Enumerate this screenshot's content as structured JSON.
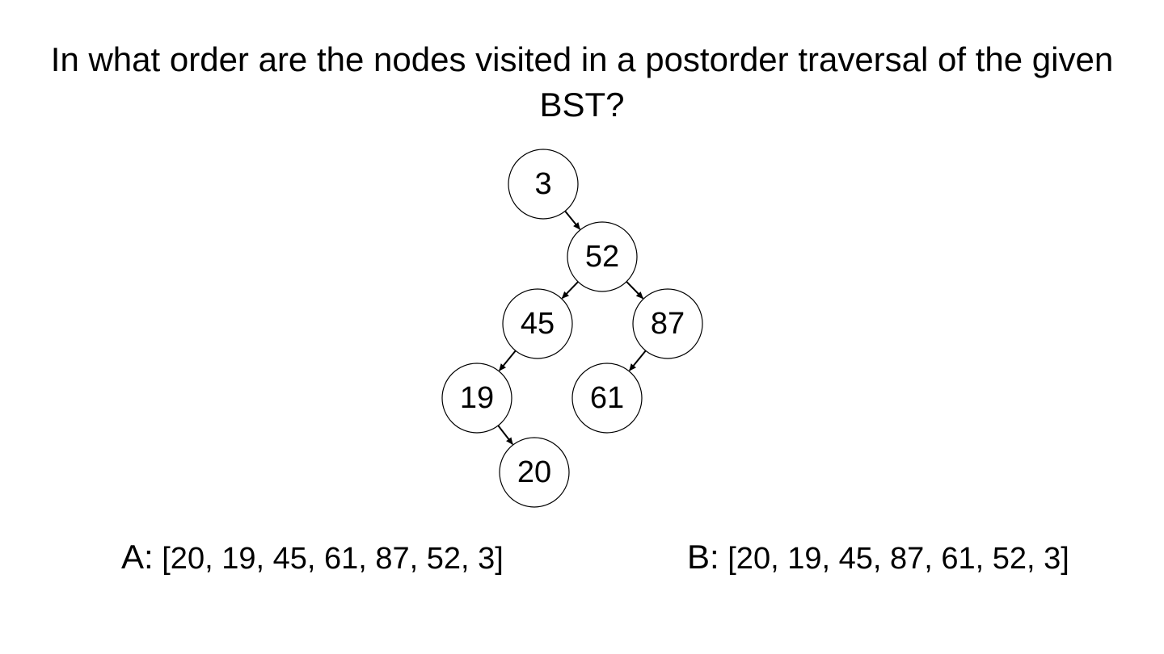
{
  "question": "In what order are the nodes visited in a postorder traversal of the given BST?",
  "tree": {
    "root": "3",
    "nodes": [
      {
        "id": "n3",
        "label": "3"
      },
      {
        "id": "n52",
        "label": "52"
      },
      {
        "id": "n45",
        "label": "45"
      },
      {
        "id": "n87",
        "label": "87"
      },
      {
        "id": "n19",
        "label": "19"
      },
      {
        "id": "n61",
        "label": "61"
      },
      {
        "id": "n20",
        "label": "20"
      }
    ],
    "edges": [
      {
        "from": "n3",
        "to": "n52",
        "side": "right"
      },
      {
        "from": "n52",
        "to": "n45",
        "side": "left"
      },
      {
        "from": "n52",
        "to": "n87",
        "side": "right"
      },
      {
        "from": "n45",
        "to": "n19",
        "side": "left"
      },
      {
        "from": "n87",
        "to": "n61",
        "side": "left"
      },
      {
        "from": "n19",
        "to": "n20",
        "side": "right"
      }
    ]
  },
  "answers": [
    {
      "key": "A:",
      "text": "[20, 19, 45, 61, 87, 52, 3]"
    },
    {
      "key": "B:",
      "text": "[20, 19, 45, 87, 61, 52, 3]"
    }
  ]
}
